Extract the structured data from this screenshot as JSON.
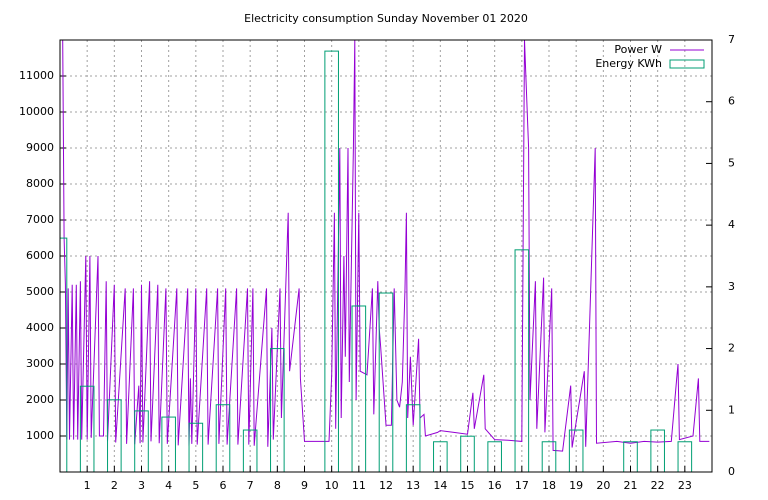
{
  "chart_data": {
    "type": "line",
    "title": "Electricity consumption Sunday November 01 2020",
    "xlim": [
      0,
      24
    ],
    "xticks": [
      1,
      2,
      3,
      4,
      5,
      6,
      7,
      8,
      9,
      10,
      11,
      12,
      13,
      14,
      15,
      16,
      17,
      18,
      19,
      20,
      21,
      22,
      23
    ],
    "ylim": [
      0,
      12000
    ],
    "yticks": [
      1000,
      2000,
      3000,
      4000,
      5000,
      6000,
      7000,
      8000,
      9000,
      10000,
      11000
    ],
    "y2lim": [
      0,
      7
    ],
    "y2ticks": [
      0,
      1,
      2,
      3,
      4,
      5,
      6,
      7
    ],
    "grid": true,
    "legend": "top-right",
    "series": [
      {
        "name": "Power W",
        "type": "line",
        "color": "#9400d3",
        "x": [
          0.0,
          0.1,
          0.15,
          0.2,
          0.25,
          0.3,
          0.35,
          0.45,
          0.5,
          0.6,
          0.65,
          0.75,
          0.8,
          0.95,
          1.0,
          1.1,
          1.15,
          1.4,
          1.45,
          1.6,
          1.7,
          1.75,
          2.0,
          2.05,
          2.4,
          2.45,
          2.7,
          2.75,
          2.9,
          2.95,
          3.0,
          3.05,
          3.3,
          3.35,
          3.6,
          3.65,
          3.9,
          3.95,
          4.3,
          4.35,
          4.7,
          4.75,
          4.8,
          4.85,
          5.0,
          5.05,
          5.4,
          5.45,
          5.8,
          5.85,
          6.1,
          6.15,
          6.5,
          6.55,
          6.9,
          6.95,
          7.1,
          7.15,
          7.6,
          7.65,
          7.8,
          7.85,
          8.1,
          8.15,
          8.4,
          8.45,
          8.8,
          8.85,
          9.0,
          9.9,
          10.0,
          10.1,
          10.15,
          10.3,
          10.35,
          10.45,
          10.5,
          10.6,
          10.65,
          10.8,
          10.85,
          10.9,
          11.0,
          11.05,
          11.3,
          11.5,
          11.55,
          11.7,
          11.75,
          11.8,
          12.0,
          12.2,
          12.3,
          12.4,
          12.5,
          12.6,
          12.7,
          12.75,
          12.8,
          12.9,
          13.0,
          13.2,
          13.25,
          13.4,
          13.45,
          13.9,
          14.0,
          14.5,
          15.0,
          15.2,
          15.25,
          15.6,
          15.65,
          16.0,
          16.5,
          17.0,
          17.1,
          17.25,
          17.3,
          17.5,
          17.55,
          17.8,
          17.85,
          18.1,
          18.15,
          18.5,
          18.8,
          18.85,
          19.3,
          19.35,
          19.7,
          19.75,
          20.5,
          21.0,
          21.5,
          22.0,
          22.5,
          22.7,
          22.75,
          22.8,
          23.3,
          23.5,
          23.55,
          23.9
        ],
        "values": [
          12000,
          12000,
          6500,
          5200,
          900,
          5100,
          900,
          5200,
          900,
          5200,
          900,
          5300,
          900,
          6000,
          900,
          6000,
          950,
          6000,
          1000,
          1000,
          5300,
          850,
          5200,
          820,
          5100,
          780,
          5100,
          770,
          2400,
          800,
          5200,
          820,
          5300,
          850,
          5200,
          800,
          5100,
          780,
          5100,
          740,
          5100,
          720,
          2600,
          780,
          5100,
          760,
          5100,
          760,
          5100,
          780,
          5100,
          760,
          5100,
          760,
          5100,
          760,
          5100,
          730,
          5100,
          700,
          4000,
          900,
          5100,
          1500,
          7200,
          2800,
          5100,
          2600,
          850,
          850,
          2700,
          7200,
          1200,
          9000,
          1500,
          6000,
          3200,
          9000,
          2500,
          9000,
          12000,
          2000,
          7200,
          2800,
          2700,
          5100,
          1600,
          5300,
          4000,
          3500,
          1300,
          1300,
          5100,
          2000,
          1800,
          2500,
          5100,
          7200,
          1500,
          3200,
          1300,
          3700,
          1500,
          1600,
          1000,
          1100,
          1150,
          1100,
          1050,
          2200,
          1200,
          2700,
          1200,
          900,
          880,
          850,
          12000,
          9000,
          2000,
          5300,
          1200,
          5400,
          1100,
          5100,
          600,
          580,
          2400,
          680,
          2800,
          700,
          9000,
          800,
          850,
          800,
          850,
          830,
          850,
          2600,
          3000,
          900,
          1000,
          2600,
          850,
          850
        ]
      },
      {
        "name": "Energy KWh",
        "type": "bar",
        "axis": "y2",
        "color": "#009e73",
        "x": [
          0,
          1,
          2,
          3,
          4,
          5,
          6,
          7,
          8,
          9,
          10,
          11,
          12,
          13,
          14,
          15,
          16,
          17,
          18,
          19,
          20,
          21,
          22,
          23
        ],
        "values": [
          3.79,
          1.39,
          1.17,
          0.99,
          0.89,
          0.79,
          1.09,
          0.68,
          2.0,
          null,
          6.82,
          2.69,
          2.9,
          1.09,
          0.49,
          0.58,
          0.49,
          3.6,
          0.49,
          0.68,
          null,
          0.49,
          0.68,
          0.49
        ]
      }
    ]
  }
}
